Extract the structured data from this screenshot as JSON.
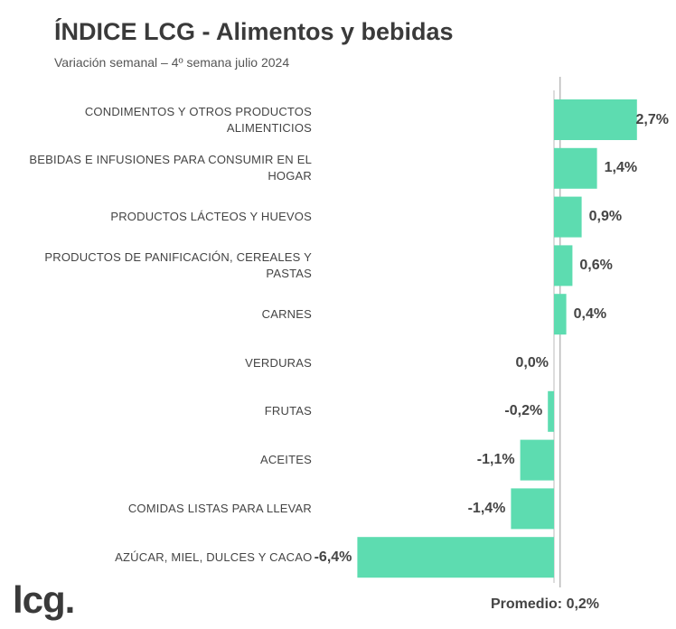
{
  "header": {
    "title": "ÍNDICE LCG - Alimentos y bebidas",
    "subtitle": "Variación semanal – 4º semana julio 2024"
  },
  "brand": "lcg.",
  "average_label": "Promedio: 0,2%",
  "colors": {
    "bar": "#5ddcb0",
    "axis": "#bbbbbb",
    "text": "#444444"
  },
  "chart_data": {
    "type": "bar",
    "orientation": "horizontal",
    "title": "ÍNDICE LCG - Alimentos y bebidas",
    "subtitle": "Variación semanal – 4º semana julio 2024",
    "categories": [
      "CONDIMENTOS Y OTROS PRODUCTOS ALIMENTICIOS",
      "BEBIDAS E INFUSIONES PARA CONSUMIR EN EL HOGAR",
      "PRODUCTOS LÁCTEOS Y HUEVOS",
      "PRODUCTOS DE PANIFICACIÓN, CEREALES Y PASTAS",
      "CARNES",
      "VERDURAS",
      "FRUTAS",
      "ACEITES",
      "COMIDAS LISTAS PARA LLEVAR",
      "AZÚCAR, MIEL, DULCES Y CACAO"
    ],
    "values": [
      2.7,
      1.4,
      0.9,
      0.6,
      0.4,
      0.0,
      -0.2,
      -1.1,
      -1.4,
      -6.4
    ],
    "value_labels": [
      "2,7%",
      "1,4%",
      "0,9%",
      "0,6%",
      "0,4%",
      "0,0%",
      "-0,2%",
      "-1,1%",
      "-1,4%",
      "-6,4%"
    ],
    "average": 0.2,
    "average_label": "Promedio: 0,2%",
    "xlim": [
      -6.4,
      2.7
    ],
    "grid": false,
    "legend": "none"
  }
}
